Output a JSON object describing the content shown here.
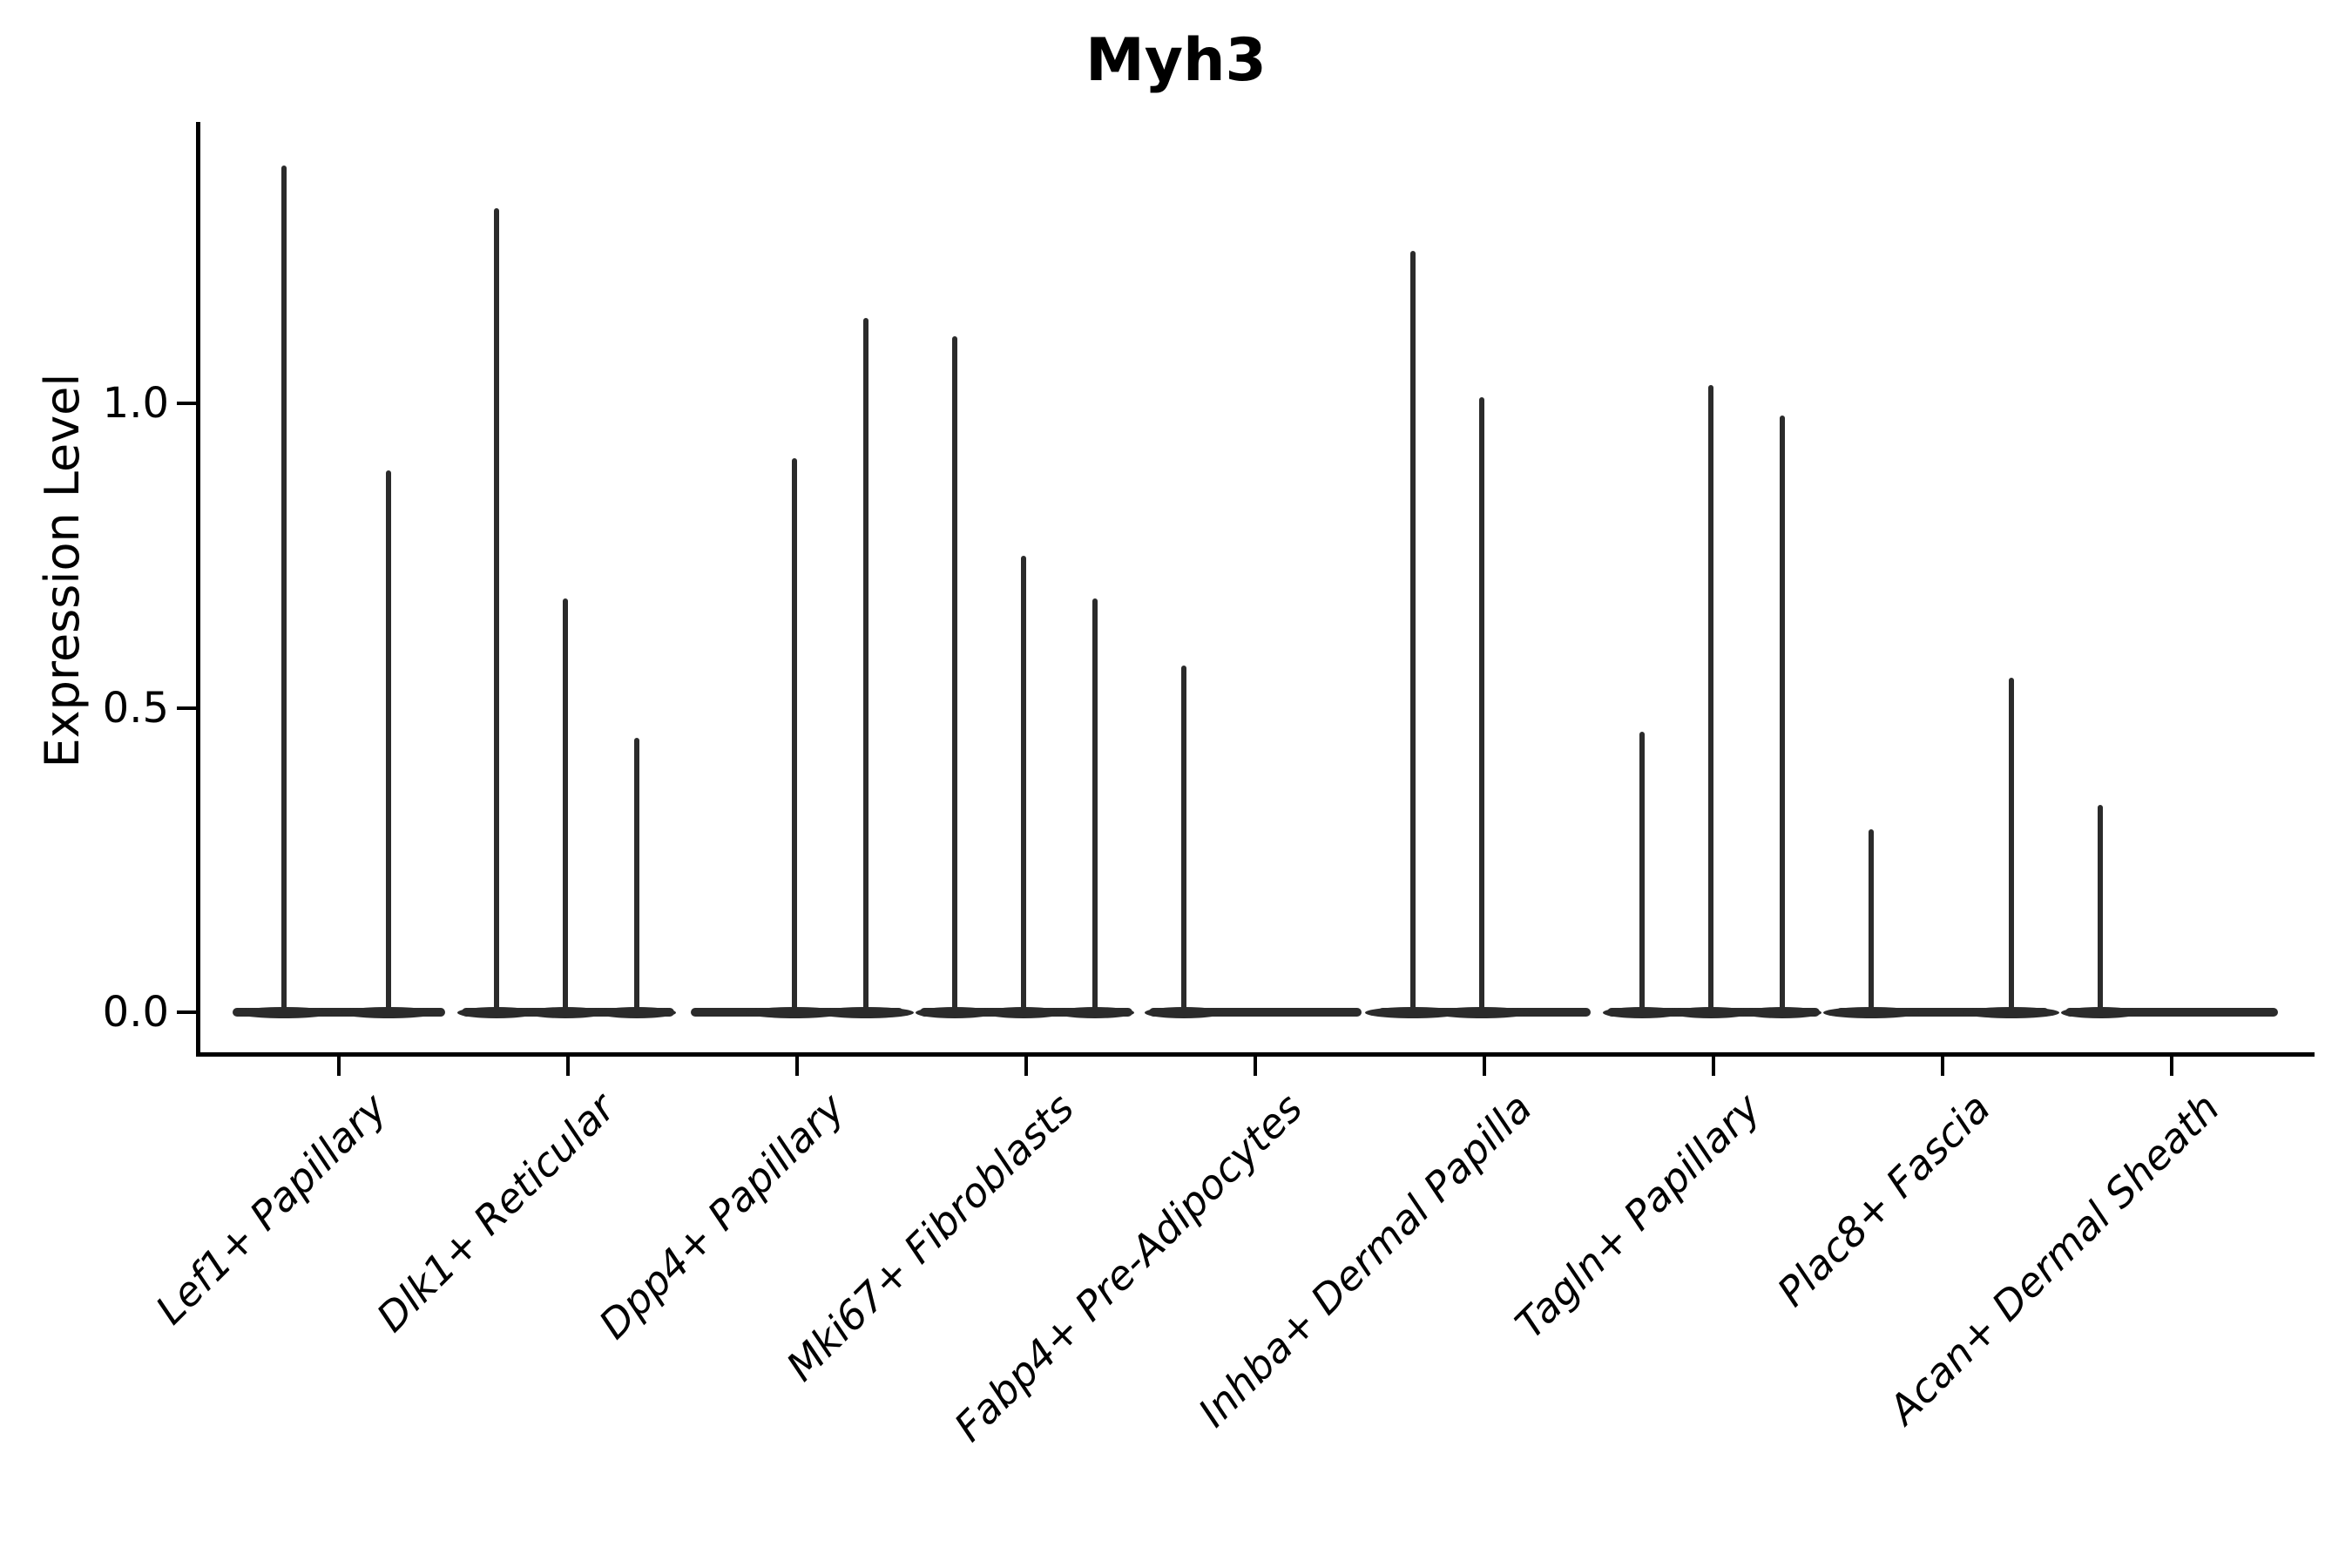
{
  "title": "Myh3",
  "y_axis": {
    "label": "Expression Level",
    "tick_labels": [
      "0.0",
      "0.5",
      "1.0"
    ]
  },
  "colors": {
    "violin": "#2b2b2b",
    "axis": "#000000",
    "text": "#000000",
    "background": "#ffffff"
  },
  "chart_data": {
    "type": "violin",
    "title": "Myh3",
    "xlabel": "",
    "ylabel": "Expression Level",
    "ylim": [
      -0.07,
      1.46
    ],
    "yticks": [
      0.0,
      0.5,
      1.0
    ],
    "grid": false,
    "legend": false,
    "categories": [
      "Lef1+ Papillary",
      "Dlk1+ Reticular",
      "Dpp4+ Papillary",
      "Mki67+ Fibroblasts",
      "Fabp4+ Pre-Adipocytes",
      "Inhba+ Dermal Papilla",
      "Tagln+ Papillary",
      "Plac8+ Fascia",
      "Acan+ Dermal Sheath"
    ],
    "groups": [
      {
        "label": "Lef1+ Papillary",
        "violins": [
          {
            "offset": -0.24,
            "peak": 1.39
          },
          {
            "offset": 0.215,
            "peak": 0.89
          }
        ]
      },
      {
        "label": "Dlk1+ Reticular",
        "violins": [
          {
            "offset": -0.31,
            "peak": 1.32
          },
          {
            "offset": -0.01,
            "peak": 0.68
          },
          {
            "offset": 0.3,
            "peak": 0.45
          }
        ]
      },
      {
        "label": "Dpp4+ Papillary",
        "violins": [
          {
            "offset": -0.01,
            "peak": 0.91
          },
          {
            "offset": 0.3,
            "peak": 1.14
          }
        ]
      },
      {
        "label": "Mki67+ Fibroblasts",
        "violins": [
          {
            "offset": -0.31,
            "peak": 1.11
          },
          {
            "offset": -0.01,
            "peak": 0.75
          },
          {
            "offset": 0.3,
            "peak": 0.68
          }
        ]
      },
      {
        "label": "Fabp4+ Pre-Adipocytes",
        "violins": [
          {
            "offset": -0.31,
            "peak": 0.57
          }
        ]
      },
      {
        "label": "Inhba+ Dermal Papilla",
        "violins": [
          {
            "offset": -0.31,
            "peak": 1.25
          },
          {
            "offset": -0.01,
            "peak": 1.01
          }
        ]
      },
      {
        "label": "Tagln+ Papillary",
        "violins": [
          {
            "offset": -0.31,
            "peak": 0.46
          },
          {
            "offset": -0.01,
            "peak": 1.03
          },
          {
            "offset": 0.3,
            "peak": 0.98
          }
        ]
      },
      {
        "label": "Plac8+ Fascia",
        "violins": [
          {
            "offset": -0.31,
            "peak": 0.3
          },
          {
            "offset": 0.3,
            "peak": 0.55
          }
        ]
      },
      {
        "label": "Acan+ Dermal Sheath",
        "violins": [
          {
            "offset": -0.31,
            "peak": 0.34
          }
        ]
      }
    ]
  }
}
